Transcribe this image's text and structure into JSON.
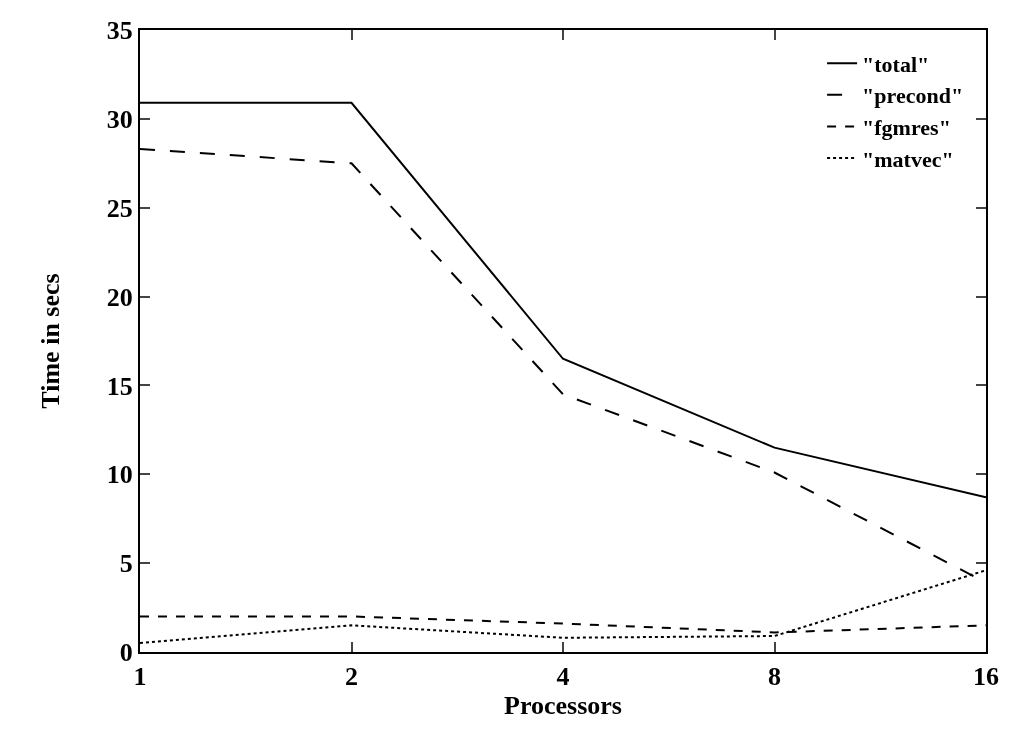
{
  "chart_data": {
    "type": "line",
    "xlabel": "Processors",
    "ylabel": "Time in secs",
    "categories": [
      "1",
      "2",
      "4",
      "8",
      "16"
    ],
    "ylim": [
      0,
      35
    ],
    "yticks": [
      0,
      5,
      10,
      15,
      20,
      25,
      30,
      35
    ],
    "legend": "top right",
    "marker": "none",
    "series": [
      {
        "name": "\"total\"",
        "color": "#000000",
        "line_style": "solid",
        "values": [
          30.9,
          30.9,
          16.5,
          11.5,
          8.7
        ]
      },
      {
        "name": "\"precond\"",
        "color": "#000000",
        "line_style": "longdash",
        "values": [
          28.3,
          27.5,
          14.5,
          10.1,
          3.9
        ]
      },
      {
        "name": "\"fgmres\"",
        "color": "#000000",
        "line_style": "dashed",
        "values": [
          2.0,
          2.0,
          1.6,
          1.1,
          1.5
        ]
      },
      {
        "name": "\"matvec\"",
        "color": "#000000",
        "line_style": "dotted",
        "values": [
          0.5,
          1.5,
          0.8,
          0.9,
          4.6
        ]
      }
    ]
  }
}
